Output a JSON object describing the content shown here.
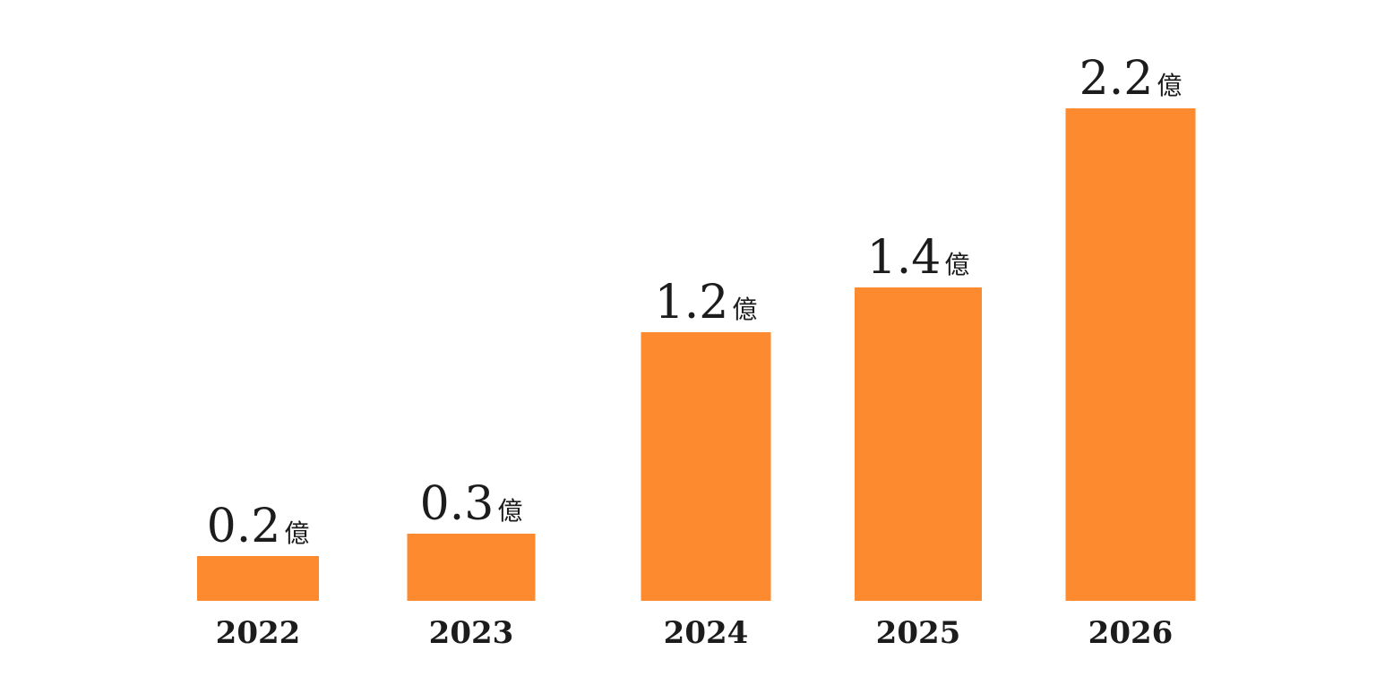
{
  "chart_data": {
    "type": "bar",
    "categories": [
      "2022",
      "2023",
      "2024",
      "2025",
      "2026"
    ],
    "values": [
      0.2,
      0.3,
      1.2,
      1.4,
      2.2
    ],
    "value_labels": [
      "0.2",
      "0.3",
      "1.2",
      "1.4",
      "2.2"
    ],
    "value_unit": "億",
    "title": "",
    "xlabel": "",
    "ylabel": "",
    "grid": false,
    "colors": {
      "bar": "#fd8a2e",
      "text": "#1c1c1c",
      "background": "#ffffff"
    }
  }
}
